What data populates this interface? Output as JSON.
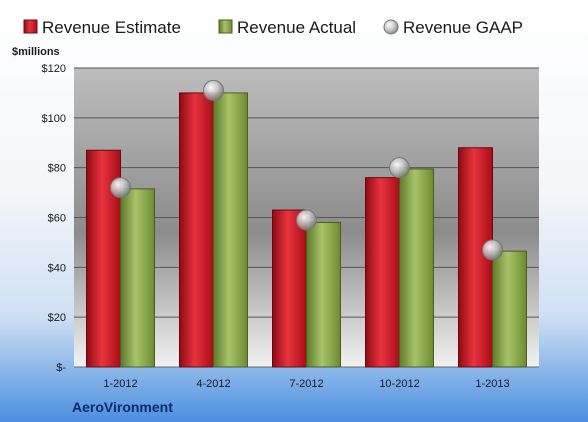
{
  "chart_data": {
    "type": "bar",
    "unit_label": "$millions",
    "company": "AeroVironment",
    "categories": [
      "1-2012",
      "4-2012",
      "7-2012",
      "10-2012",
      "1-2013"
    ],
    "ylim": [
      0,
      120
    ],
    "y_ticks": [
      {
        "value": 0,
        "label": "$-"
      },
      {
        "value": 20,
        "label": "$20"
      },
      {
        "value": 40,
        "label": "$40"
      },
      {
        "value": 60,
        "label": "$60"
      },
      {
        "value": 80,
        "label": "$80"
      },
      {
        "value": 100,
        "label": "$100"
      },
      {
        "value": 120,
        "label": "$120"
      }
    ],
    "grid": true,
    "legend_position": "top",
    "series": [
      {
        "name": "Revenue Estimate",
        "kind": "bar",
        "color": "#c8102e",
        "values": [
          87,
          110,
          63,
          76,
          88
        ]
      },
      {
        "name": "Revenue Actual",
        "kind": "bar",
        "color": "#8fae4a",
        "values": [
          71.5,
          110,
          58,
          79.5,
          46.5
        ]
      },
      {
        "name": "Revenue GAAP",
        "kind": "marker",
        "color": "#b0b0b0",
        "values": [
          72,
          111,
          59,
          80,
          47
        ]
      }
    ]
  }
}
